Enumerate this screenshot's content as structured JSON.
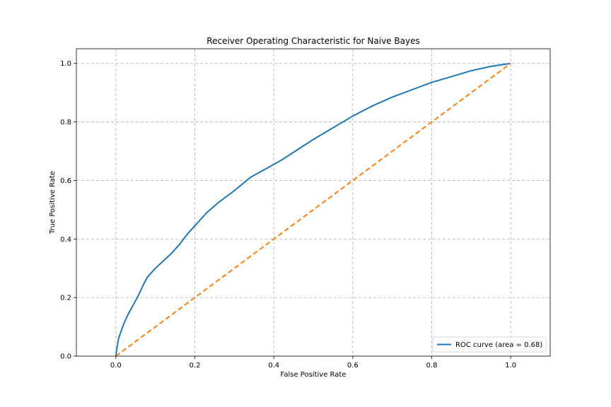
{
  "chart_data": {
    "type": "line",
    "title": "Receiver Operating Characteristic for Naive Bayes",
    "xlabel": "False Positive Rate",
    "ylabel": "True Positive Rate",
    "xlim": [
      -0.1,
      1.1
    ],
    "ylim": [
      0.0,
      1.05
    ],
    "xticks": [
      0.0,
      0.2,
      0.4,
      0.6,
      0.8,
      1.0
    ],
    "yticks": [
      0.0,
      0.2,
      0.4,
      0.6,
      0.8,
      1.0
    ],
    "xtick_labels": [
      "0.0",
      "0.2",
      "0.4",
      "0.6",
      "0.8",
      "1.0"
    ],
    "ytick_labels": [
      "0.0",
      "0.2",
      "0.4",
      "0.6",
      "0.8",
      "1.0"
    ],
    "grid": true,
    "legend_position": "lower-right",
    "series": [
      {
        "name": "ROC curve (area = 0.68)",
        "color": "#1f77b4",
        "style": "solid",
        "x": [
          0.0,
          0.003,
          0.007,
          0.012,
          0.02,
          0.03,
          0.04,
          0.05,
          0.06,
          0.07,
          0.08,
          0.09,
          0.1,
          0.12,
          0.14,
          0.16,
          0.18,
          0.2,
          0.23,
          0.26,
          0.3,
          0.34,
          0.38,
          0.42,
          0.46,
          0.5,
          0.55,
          0.6,
          0.65,
          0.7,
          0.75,
          0.8,
          0.85,
          0.9,
          0.95,
          1.0
        ],
        "y": [
          0.0,
          0.03,
          0.06,
          0.08,
          0.11,
          0.14,
          0.165,
          0.19,
          0.215,
          0.245,
          0.27,
          0.285,
          0.3,
          0.325,
          0.35,
          0.38,
          0.415,
          0.445,
          0.49,
          0.525,
          0.565,
          0.61,
          0.64,
          0.67,
          0.705,
          0.74,
          0.78,
          0.82,
          0.855,
          0.885,
          0.91,
          0.935,
          0.955,
          0.975,
          0.99,
          1.0
        ]
      },
      {
        "name": "",
        "color": "#ff7f0e",
        "style": "dashed",
        "x": [
          0.0,
          1.0
        ],
        "y": [
          0.0,
          1.0
        ]
      }
    ]
  }
}
